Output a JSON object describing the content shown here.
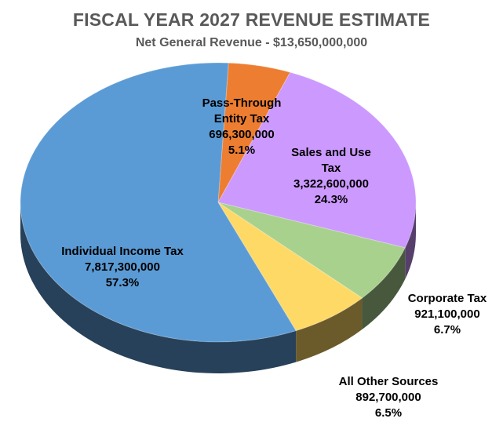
{
  "chart_data": {
    "type": "pie",
    "title": "FISCAL YEAR 2027 REVENUE ESTIMATE",
    "subtitle": "Net General Revenue - $13,650,000,000",
    "slices": [
      {
        "label_lines": [
          "Pass-Through",
          "Entity Tax"
        ],
        "value": 696300000,
        "value_label": "696,300,000",
        "percent_label": "5.1%",
        "color": "#ED7D31"
      },
      {
        "label_lines": [
          "Sales and Use",
          "Tax"
        ],
        "value": 3322600000,
        "value_label": "3,322,600,000",
        "percent_label": "24.3%",
        "color": "#CC99FF"
      },
      {
        "label_lines": [
          "Corporate Tax"
        ],
        "value": 921100000,
        "value_label": "921,100,000",
        "percent_label": "6.7%",
        "color": "#A9D18E"
      },
      {
        "label_lines": [
          "All Other Sources"
        ],
        "value": 892700000,
        "value_label": "892,700,000",
        "percent_label": "6.5%",
        "color": "#FFD966"
      },
      {
        "label_lines": [
          "Individual Income Tax"
        ],
        "value": 7817300000,
        "value_label": "7,817,300,000",
        "percent_label": "57.3%",
        "color": "#5B9BD5"
      }
    ]
  }
}
